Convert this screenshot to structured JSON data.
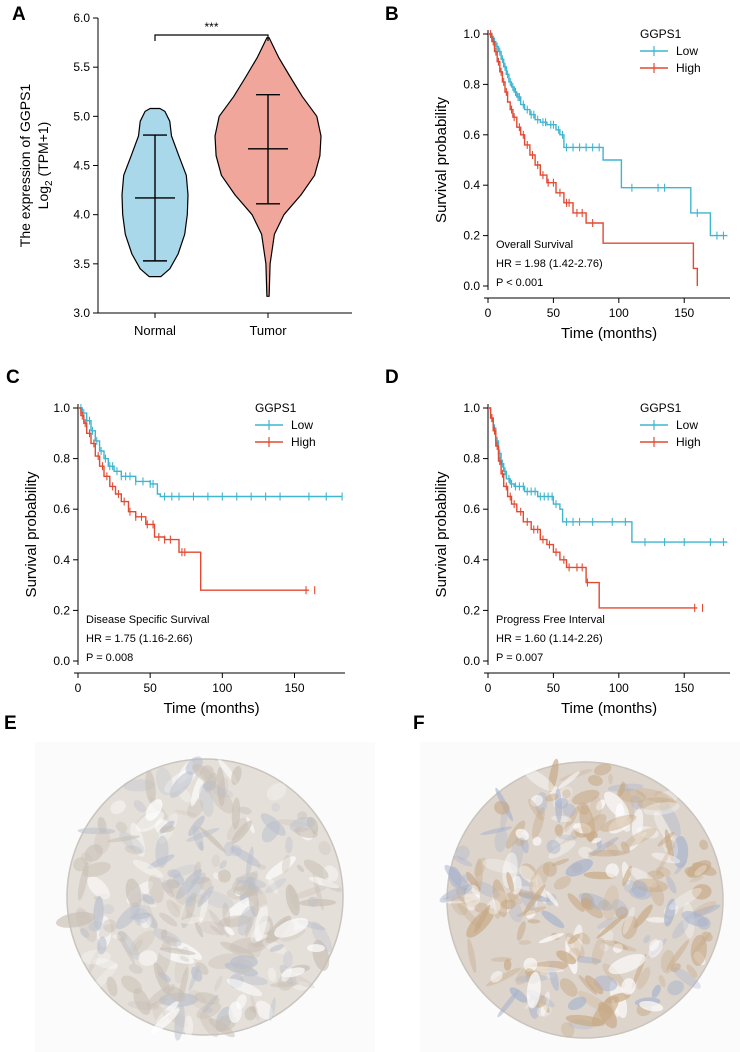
{
  "colors": {
    "normal_fill": "#a8d8ea",
    "tumor_fill": "#f0a69a",
    "low": "#3fb5d0",
    "high": "#e24a33"
  },
  "panels": {
    "A": "A",
    "B": "B",
    "C": "C",
    "D": "D",
    "E": "E",
    "F": "F"
  },
  "chart_data": [
    {
      "panel": "A",
      "type": "violin",
      "ylabel_line1": "The expression of GGPS1",
      "ylabel_line2_prefix": "Log",
      "ylabel_line2_sub": "2",
      "ylabel_line2_suffix": " (TPM+1)",
      "ylim": [
        3.0,
        6.0
      ],
      "yticks": [
        "3.0",
        "3.5",
        "4.0",
        "4.5",
        "5.0",
        "5.5",
        "6.0"
      ],
      "categories": [
        "Normal",
        "Tumor"
      ],
      "significance": "***",
      "groups": [
        {
          "name": "Normal",
          "min": 3.37,
          "max": 5.08,
          "mean": 4.17,
          "sd_low": 3.53,
          "sd_high": 4.81,
          "profile": [
            [
              3.37,
              0.18
            ],
            [
              3.45,
              0.45
            ],
            [
              3.6,
              0.7
            ],
            [
              3.8,
              0.9
            ],
            [
              4.0,
              0.98
            ],
            [
              4.2,
              1.0
            ],
            [
              4.4,
              0.95
            ],
            [
              4.6,
              0.72
            ],
            [
              4.8,
              0.5
            ],
            [
              4.95,
              0.45
            ],
            [
              5.05,
              0.3
            ],
            [
              5.08,
              0.15
            ]
          ]
        },
        {
          "name": "Tumor",
          "min": 3.17,
          "max": 5.8,
          "mean": 4.67,
          "sd_low": 4.11,
          "sd_high": 5.22,
          "profile": [
            [
              3.17,
              0.02
            ],
            [
              3.5,
              0.04
            ],
            [
              3.8,
              0.12
            ],
            [
              4.0,
              0.3
            ],
            [
              4.2,
              0.62
            ],
            [
              4.4,
              0.88
            ],
            [
              4.6,
              0.98
            ],
            [
              4.8,
              1.0
            ],
            [
              5.0,
              0.92
            ],
            [
              5.2,
              0.65
            ],
            [
              5.4,
              0.42
            ],
            [
              5.6,
              0.2
            ],
            [
              5.8,
              0.02
            ]
          ]
        }
      ]
    },
    {
      "panel": "B",
      "type": "line",
      "xlabel": "Time (months)",
      "ylabel": "Survival probability",
      "xlim": [
        0,
        185
      ],
      "ylim": [
        0,
        1
      ],
      "xticks": [
        "0",
        "50",
        "100",
        "150"
      ],
      "yticks": [
        "0.0",
        "0.2",
        "0.4",
        "0.6",
        "0.8",
        "1.0"
      ],
      "legend_title": "GGPS1",
      "annotation": [
        "Overall Survival",
        "HR = 1.98 (1.42-2.76)",
        "P < 0.001"
      ],
      "series": [
        {
          "name": "Low",
          "steps": [
            [
              0,
              1
            ],
            [
              2,
              0.99
            ],
            [
              4,
              0.97
            ],
            [
              6,
              0.95
            ],
            [
              8,
              0.93
            ],
            [
              10,
              0.9
            ],
            [
              12,
              0.87
            ],
            [
              14,
              0.84
            ],
            [
              16,
              0.81
            ],
            [
              18,
              0.79
            ],
            [
              20,
              0.77
            ],
            [
              22,
              0.75
            ],
            [
              25,
              0.72
            ],
            [
              28,
              0.7
            ],
            [
              32,
              0.68
            ],
            [
              36,
              0.66
            ],
            [
              40,
              0.65
            ],
            [
              45,
              0.64
            ],
            [
              52,
              0.62
            ],
            [
              55,
              0.6
            ],
            [
              58,
              0.55
            ],
            [
              88,
              0.5
            ],
            [
              102,
              0.39
            ],
            [
              155,
              0.29
            ],
            [
              170,
              0.2
            ],
            [
              183,
              0.2
            ]
          ],
          "censors": [
            3,
            5,
            7,
            9,
            11,
            13,
            15,
            17,
            19,
            21,
            23,
            24,
            27,
            30,
            33,
            35,
            38,
            42,
            44,
            48,
            50,
            54,
            57,
            60,
            65,
            70,
            75,
            80,
            85,
            110,
            130,
            135,
            160,
            175,
            180
          ]
        },
        {
          "name": "High",
          "steps": [
            [
              0,
              1
            ],
            [
              3,
              0.97
            ],
            [
              5,
              0.93
            ],
            [
              7,
              0.89
            ],
            [
              9,
              0.85
            ],
            [
              11,
              0.81
            ],
            [
              13,
              0.77
            ],
            [
              15,
              0.73
            ],
            [
              17,
              0.7
            ],
            [
              19,
              0.67
            ],
            [
              22,
              0.63
            ],
            [
              25,
              0.6
            ],
            [
              28,
              0.56
            ],
            [
              32,
              0.52
            ],
            [
              36,
              0.48
            ],
            [
              40,
              0.44
            ],
            [
              45,
              0.41
            ],
            [
              52,
              0.37
            ],
            [
              58,
              0.33
            ],
            [
              65,
              0.29
            ],
            [
              75,
              0.25
            ],
            [
              88,
              0.17
            ],
            [
              157,
              0.07
            ],
            [
              160,
              0
            ]
          ],
          "censors": [
            2,
            4,
            6,
            8,
            10,
            12,
            14,
            18,
            20,
            24,
            27,
            30,
            34,
            38,
            42,
            46,
            50,
            55,
            60,
            62,
            68,
            72,
            80
          ]
        }
      ]
    },
    {
      "panel": "C",
      "type": "line",
      "xlabel": "Time (months)",
      "ylabel": "Survival probability",
      "xlim": [
        0,
        185
      ],
      "ylim": [
        0,
        1
      ],
      "xticks": [
        "0",
        "50",
        "100",
        "150"
      ],
      "yticks": [
        "0.0",
        "0.2",
        "0.4",
        "0.6",
        "0.8",
        "1.0"
      ],
      "legend_title": "GGPS1",
      "annotation": [
        "Disease Specific Survival",
        "HR = 1.75 (1.16-2.66)",
        "P = 0.008"
      ],
      "series": [
        {
          "name": "Low",
          "steps": [
            [
              0,
              1
            ],
            [
              3,
              0.98
            ],
            [
              6,
              0.95
            ],
            [
              9,
              0.91
            ],
            [
              12,
              0.87
            ],
            [
              15,
              0.83
            ],
            [
              18,
              0.8
            ],
            [
              21,
              0.77
            ],
            [
              25,
              0.75
            ],
            [
              30,
              0.73
            ],
            [
              40,
              0.71
            ],
            [
              50,
              0.7
            ],
            [
              55,
              0.66
            ],
            [
              57,
              0.65
            ],
            [
              183,
              0.65
            ]
          ],
          "censors": [
            2,
            4,
            6,
            8,
            10,
            13,
            16,
            19,
            22,
            24,
            27,
            30,
            33,
            36,
            40,
            45,
            50,
            52,
            60,
            65,
            70,
            80,
            90,
            100,
            110,
            120,
            130,
            140,
            160,
            172,
            183
          ]
        },
        {
          "name": "High",
          "steps": [
            [
              0,
              1
            ],
            [
              2,
              0.97
            ],
            [
              4,
              0.94
            ],
            [
              6,
              0.9
            ],
            [
              9,
              0.86
            ],
            [
              12,
              0.81
            ],
            [
              15,
              0.77
            ],
            [
              18,
              0.73
            ],
            [
              22,
              0.69
            ],
            [
              26,
              0.66
            ],
            [
              30,
              0.63
            ],
            [
              35,
              0.59
            ],
            [
              40,
              0.57
            ],
            [
              47,
              0.54
            ],
            [
              53,
              0.49
            ],
            [
              60,
              0.48
            ],
            [
              70,
              0.43
            ],
            [
              85,
              0.28
            ],
            [
              160,
              0.28
            ]
          ],
          "censors": [
            3,
            5,
            8,
            11,
            14,
            17,
            20,
            24,
            28,
            32,
            36,
            40,
            44,
            48,
            52,
            56,
            60,
            64,
            72,
            74,
            158,
            164
          ]
        }
      ]
    },
    {
      "panel": "D",
      "type": "line",
      "xlabel": "Time (months)",
      "ylabel": "Survival probability",
      "xlim": [
        0,
        185
      ],
      "ylim": [
        0,
        1
      ],
      "xticks": [
        "0",
        "50",
        "100",
        "150"
      ],
      "yticks": [
        "0.0",
        "0.2",
        "0.4",
        "0.6",
        "0.8",
        "1.0"
      ],
      "legend_title": "GGPS1",
      "annotation": [
        "Progress Free Interval",
        "HR = 1.60 (1.14-2.26)",
        "P = 0.007"
      ],
      "series": [
        {
          "name": "Low",
          "steps": [
            [
              0,
              1
            ],
            [
              2,
              0.96
            ],
            [
              4,
              0.92
            ],
            [
              6,
              0.87
            ],
            [
              8,
              0.82
            ],
            [
              10,
              0.78
            ],
            [
              12,
              0.75
            ],
            [
              14,
              0.72
            ],
            [
              17,
              0.7
            ],
            [
              20,
              0.69
            ],
            [
              28,
              0.67
            ],
            [
              38,
              0.65
            ],
            [
              50,
              0.62
            ],
            [
              55,
              0.6
            ],
            [
              57,
              0.55
            ],
            [
              110,
              0.47
            ],
            [
              183,
              0.47
            ]
          ],
          "censors": [
            3,
            5,
            7,
            9,
            11,
            13,
            16,
            18,
            21,
            24,
            27,
            30,
            33,
            36,
            40,
            43,
            46,
            49,
            52,
            60,
            65,
            70,
            80,
            95,
            105,
            120,
            135,
            150,
            170,
            180
          ]
        },
        {
          "name": "High",
          "steps": [
            [
              0,
              1
            ],
            [
              2,
              0.96
            ],
            [
              4,
              0.91
            ],
            [
              6,
              0.85
            ],
            [
              8,
              0.79
            ],
            [
              10,
              0.74
            ],
            [
              12,
              0.69
            ],
            [
              15,
              0.65
            ],
            [
              18,
              0.62
            ],
            [
              22,
              0.59
            ],
            [
              27,
              0.55
            ],
            [
              33,
              0.52
            ],
            [
              40,
              0.48
            ],
            [
              45,
              0.46
            ],
            [
              50,
              0.43
            ],
            [
              55,
              0.4
            ],
            [
              60,
              0.37
            ],
            [
              75,
              0.31
            ],
            [
              85,
              0.21
            ],
            [
              160,
              0.21
            ]
          ],
          "censors": [
            3,
            5,
            7,
            9,
            11,
            14,
            17,
            20,
            25,
            30,
            35,
            38,
            42,
            47,
            52,
            58,
            62,
            68,
            72,
            76,
            158,
            164
          ]
        }
      ]
    }
  ]
}
